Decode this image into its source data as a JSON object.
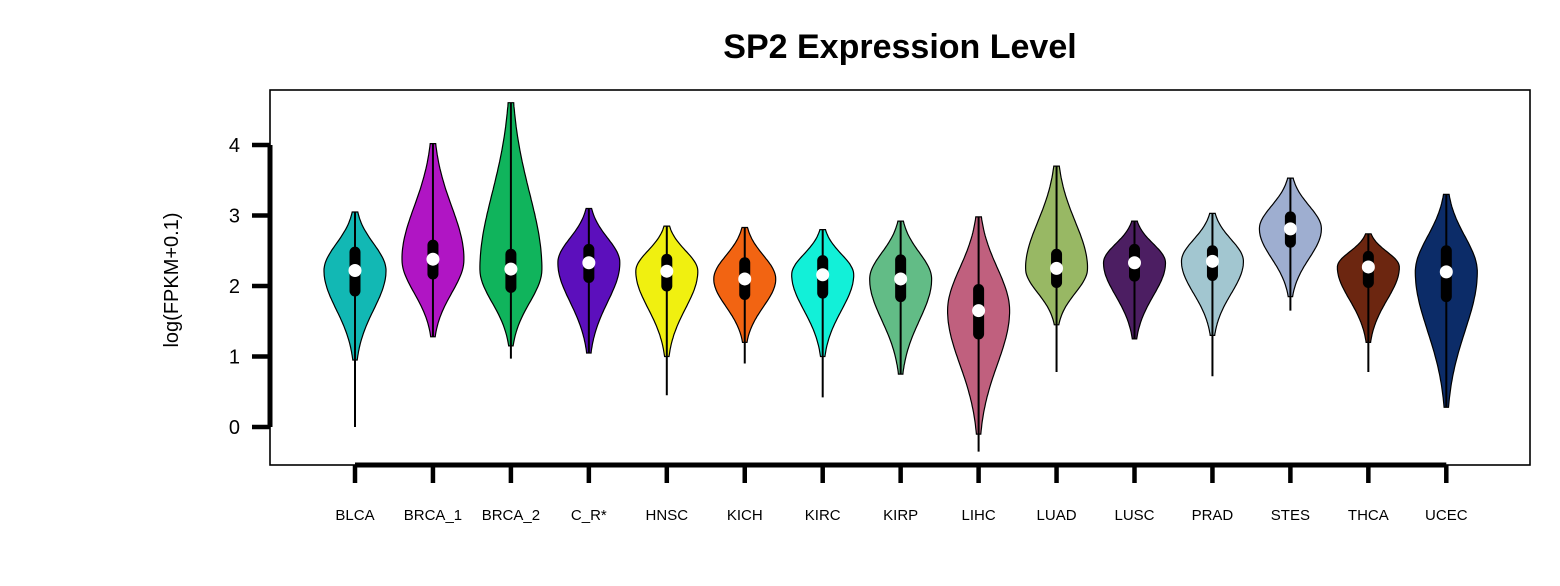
{
  "chart_data": {
    "type": "violin",
    "title": "SP2 Expression Level",
    "xlabel": "",
    "ylabel": "log(FPKM+0.1)",
    "ylim": [
      -0.55,
      4.8
    ],
    "yticks": [
      0,
      1,
      2,
      3,
      4
    ],
    "grid": false,
    "legend": "none",
    "categories": [
      "BLCA",
      "BRCA_1",
      "BRCA_2",
      "C_R*",
      "HNSC",
      "KICH",
      "KIRC",
      "KIRP",
      "LIHC",
      "LUAD",
      "LUSC",
      "PRAD",
      "STES",
      "THCA",
      "UCEC"
    ],
    "colors": [
      "#12b8b4",
      "#b015c4",
      "#10b45c",
      "#5c0fbc",
      "#f0f010",
      "#f26412",
      "#12f0d8",
      "#62bc86",
      "#c0607e",
      "#98b864",
      "#4c1e62",
      "#a2c6d0",
      "#9eaed0",
      "#6c2610",
      "#0c2c68"
    ],
    "series": [
      {
        "median": 2.22,
        "q1": 1.93,
        "q3": 2.48,
        "min": 0.0,
        "max": 3.05,
        "violin_lo": 0.95
      },
      {
        "median": 2.38,
        "q1": 2.17,
        "q3": 2.58,
        "min": 1.28,
        "max": 4.02,
        "violin_lo": 1.28
      },
      {
        "median": 2.24,
        "q1": 1.98,
        "q3": 2.45,
        "min": 0.97,
        "max": 4.6,
        "violin_lo": 1.15
      },
      {
        "median": 2.33,
        "q1": 2.12,
        "q3": 2.52,
        "min": 1.05,
        "max": 3.1,
        "violin_lo": 1.05
      },
      {
        "median": 2.21,
        "q1": 2.0,
        "q3": 2.38,
        "min": 0.45,
        "max": 2.85,
        "violin_lo": 1.0
      },
      {
        "median": 2.1,
        "q1": 1.88,
        "q3": 2.33,
        "min": 0.9,
        "max": 2.83,
        "violin_lo": 1.2
      },
      {
        "median": 2.16,
        "q1": 1.9,
        "q3": 2.36,
        "min": 0.42,
        "max": 2.8,
        "violin_lo": 1.0
      },
      {
        "median": 2.1,
        "q1": 1.85,
        "q3": 2.37,
        "min": 0.75,
        "max": 2.92,
        "violin_lo": 0.75
      },
      {
        "median": 1.65,
        "q1": 1.32,
        "q3": 1.95,
        "min": -0.35,
        "max": 2.98,
        "violin_lo": -0.1
      },
      {
        "median": 2.25,
        "q1": 2.05,
        "q3": 2.45,
        "min": 0.78,
        "max": 3.7,
        "violin_lo": 1.45
      },
      {
        "median": 2.33,
        "q1": 2.14,
        "q3": 2.52,
        "min": 1.25,
        "max": 2.92,
        "violin_lo": 1.25
      },
      {
        "median": 2.35,
        "q1": 2.15,
        "q3": 2.5,
        "min": 0.72,
        "max": 3.03,
        "violin_lo": 1.3
      },
      {
        "median": 2.81,
        "q1": 2.62,
        "q3": 2.98,
        "min": 1.65,
        "max": 3.53,
        "violin_lo": 1.85
      },
      {
        "median": 2.27,
        "q1": 2.05,
        "q3": 2.42,
        "min": 0.78,
        "max": 2.74,
        "violin_lo": 1.2
      },
      {
        "median": 2.2,
        "q1": 1.85,
        "q3": 2.5,
        "min": 0.28,
        "max": 3.3,
        "violin_lo": 0.28
      }
    ]
  }
}
